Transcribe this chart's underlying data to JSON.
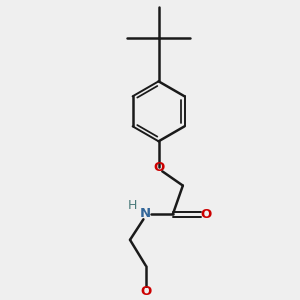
{
  "background_color": "#efefef",
  "bond_color": "#1a1a1a",
  "oxygen_color": "#cc0000",
  "nitrogen_color": "#336699",
  "h_color": "#4a7a7a",
  "text_color": "#1a1a1a",
  "figsize": [
    3.0,
    3.0
  ],
  "dpi": 100,
  "xlim": [
    0,
    10
  ],
  "ylim": [
    0,
    10
  ]
}
